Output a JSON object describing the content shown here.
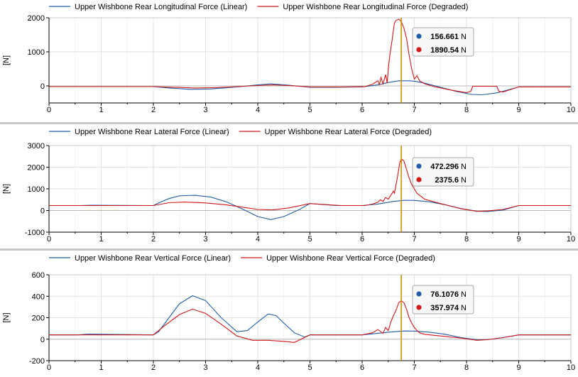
{
  "colors": {
    "linear": "#1f5fa8",
    "degraded": "#d01818",
    "cursor": "#c98a00",
    "grid": "#e2e2e2",
    "axis": "#000000"
  },
  "cursor_x": 6.75,
  "chart_data": [
    {
      "type": "line",
      "xlim": [
        0,
        10
      ],
      "ylim": [
        -500,
        2000
      ],
      "yticks": [
        2000,
        1000,
        0
      ],
      "xticks": [
        0,
        1,
        2,
        3,
        4,
        5,
        6,
        7,
        8,
        9,
        10
      ],
      "ylabel": "[N]",
      "grid": true,
      "legend_position": "top",
      "series": [
        {
          "name": "Upper Wishbone Rear Longitudinal Force (Linear)",
          "color": "#1f5fa8",
          "x": [
            0,
            2,
            2.3,
            2.7,
            3.1,
            3.6,
            4.0,
            4.25,
            4.6,
            5.0,
            5.5,
            6.0,
            6.3,
            6.5,
            6.7,
            6.9,
            7.0,
            7.2,
            7.5,
            7.8,
            8.1,
            8.3,
            8.6,
            9.0,
            10.0
          ],
          "y": [
            -20,
            -20,
            -60,
            -100,
            -90,
            -30,
            30,
            60,
            20,
            -40,
            -40,
            -30,
            30,
            100,
            150,
            150,
            140,
            80,
            -40,
            -160,
            -250,
            -260,
            -200,
            -30,
            -30
          ],
          "cursor_value": 156.661
        },
        {
          "name": "Upper Wishbone Rear Longitudinal Force (Degraded)",
          "color": "#d01818",
          "x": [
            0,
            2,
            2.4,
            2.8,
            3.2,
            3.6,
            4.0,
            4.3,
            4.7,
            5.0,
            5.6,
            6.05,
            6.2,
            6.3,
            6.33,
            6.36,
            6.4,
            6.45,
            6.48,
            6.5,
            6.53,
            6.57,
            6.6,
            6.62,
            6.65,
            6.7,
            6.75,
            6.8,
            6.85,
            6.9,
            6.95,
            7.0,
            7.05,
            7.1,
            7.2,
            7.4,
            7.7,
            8.0,
            8.08,
            8.12,
            8.58,
            8.62,
            8.7,
            9.0,
            10.0
          ],
          "y": [
            -20,
            -20,
            -40,
            -60,
            -50,
            -20,
            10,
            30,
            0,
            -30,
            -30,
            -20,
            50,
            150,
            40,
            250,
            60,
            330,
            80,
            500,
            900,
            1300,
            1650,
            1850,
            1920,
            1960,
            1890.54,
            1700,
            1400,
            900,
            500,
            200,
            300,
            150,
            60,
            -30,
            -120,
            -200,
            -160,
            -10,
            -10,
            -160,
            -180,
            -30,
            -30
          ],
          "cursor_value": 1890.54
        }
      ]
    },
    {
      "type": "line",
      "xlim": [
        0,
        10
      ],
      "ylim": [
        -1000,
        3000
      ],
      "yticks": [
        3000,
        2000,
        1000,
        0,
        -1000
      ],
      "xticks": [
        0,
        1,
        2,
        3,
        4,
        5,
        6,
        7,
        8,
        9,
        10
      ],
      "ylabel": "[N]",
      "grid": true,
      "legend_position": "top",
      "series": [
        {
          "name": "Upper Wishbone Rear Lateral Force (Linear)",
          "color": "#1f5fa8",
          "x": [
            0,
            0.6,
            0.8,
            2.0,
            2.1,
            2.3,
            2.5,
            2.8,
            3.1,
            3.4,
            3.7,
            4.0,
            4.25,
            4.5,
            4.8,
            5.0,
            5.5,
            6.0,
            6.3,
            6.6,
            6.8,
            7.0,
            7.3,
            7.6,
            7.9,
            8.2,
            8.4,
            8.7,
            9.0,
            10.0
          ],
          "y": [
            230,
            230,
            245,
            230,
            350,
            550,
            680,
            700,
            620,
            400,
            80,
            -280,
            -420,
            -280,
            50,
            320,
            230,
            230,
            300,
            420,
            470,
            470,
            400,
            260,
            90,
            -30,
            -50,
            20,
            230,
            230
          ],
          "cursor_value": 472.296
        },
        {
          "name": "Upper Wishbone Rear Lateral Force (Degraded)",
          "color": "#d01818",
          "x": [
            0,
            2.0,
            2.3,
            2.6,
            3.0,
            3.4,
            3.8,
            4.0,
            4.3,
            4.6,
            5.0,
            5.6,
            6.05,
            6.2,
            6.3,
            6.35,
            6.4,
            6.45,
            6.5,
            6.55,
            6.6,
            6.62,
            6.65,
            6.68,
            6.72,
            6.75,
            6.8,
            6.85,
            6.9,
            6.95,
            7.0,
            7.05,
            7.1,
            7.2,
            7.5,
            7.9,
            8.2,
            8.4,
            8.7,
            9.0,
            10.0
          ],
          "y": [
            230,
            230,
            360,
            390,
            350,
            260,
            120,
            50,
            30,
            120,
            320,
            230,
            230,
            300,
            380,
            500,
            420,
            600,
            520,
            700,
            900,
            800,
            1200,
            1600,
            2200,
            2375.6,
            2300,
            1900,
            1500,
            1200,
            1000,
            800,
            700,
            520,
            320,
            80,
            -40,
            -20,
            50,
            230,
            230
          ],
          "cursor_value": 2375.6
        }
      ]
    },
    {
      "type": "line",
      "xlim": [
        0,
        10
      ],
      "ylim": [
        -200,
        600
      ],
      "yticks": [
        600,
        400,
        200,
        0,
        -200
      ],
      "xticks": [
        0,
        1,
        2,
        3,
        4,
        5,
        6,
        7,
        8,
        9,
        10
      ],
      "ylabel": "[N]",
      "grid": true,
      "legend_position": "top",
      "series": [
        {
          "name": "Upper Wishbone Rear Vertical Force (Linear)",
          "color": "#1f5fa8",
          "x": [
            0,
            0.55,
            0.75,
            2.0,
            2.1,
            2.3,
            2.5,
            2.75,
            3.0,
            3.3,
            3.6,
            3.8,
            4.0,
            4.2,
            4.35,
            4.5,
            4.7,
            4.9,
            5.0,
            6.0,
            6.2,
            6.5,
            6.8,
            7.0,
            7.3,
            7.6,
            7.9,
            8.2,
            8.4,
            8.7,
            9.0,
            10.0
          ],
          "y": [
            40,
            40,
            48,
            40,
            70,
            200,
            330,
            405,
            360,
            200,
            70,
            80,
            160,
            235,
            220,
            150,
            60,
            20,
            40,
            40,
            50,
            65,
            76.1076,
            76,
            65,
            45,
            15,
            -5,
            -5,
            15,
            40,
            40
          ],
          "cursor_value": 76.1076
        },
        {
          "name": "Upper Wishbone Rear Vertical Force (Degraded)",
          "color": "#d01818",
          "x": [
            0,
            2.0,
            2.2,
            2.5,
            2.75,
            3.0,
            3.3,
            3.6,
            3.9,
            4.2,
            4.5,
            4.7,
            5.0,
            6.0,
            6.2,
            6.3,
            6.4,
            6.45,
            6.5,
            6.55,
            6.6,
            6.65,
            6.7,
            6.75,
            6.8,
            6.85,
            6.9,
            6.95,
            7.0,
            7.05,
            7.1,
            7.2,
            7.5,
            7.9,
            8.2,
            8.4,
            8.7,
            9.0,
            10.0
          ],
          "y": [
            40,
            40,
            120,
            230,
            280,
            240,
            140,
            30,
            -10,
            -10,
            -20,
            -30,
            40,
            40,
            60,
            90,
            55,
            110,
            80,
            160,
            220,
            270,
            340,
            357.974,
            340,
            280,
            200,
            150,
            110,
            80,
            60,
            45,
            30,
            10,
            -10,
            -5,
            15,
            40,
            40
          ],
          "cursor_value": 357.974
        }
      ]
    }
  ],
  "tooltips": [
    {
      "rows": [
        {
          "value": "156.661",
          "unit": "N",
          "color": "#1f5fa8"
        },
        {
          "value": "1890.54",
          "unit": "N",
          "color": "#d01818"
        }
      ]
    },
    {
      "rows": [
        {
          "value": "472.296",
          "unit": "N",
          "color": "#1f5fa8"
        },
        {
          "value": "2375.6",
          "unit": "N",
          "color": "#d01818"
        }
      ]
    },
    {
      "rows": [
        {
          "value": "76.1076",
          "unit": "N",
          "color": "#1f5fa8"
        },
        {
          "value": "357.974",
          "unit": "N",
          "color": "#d01818"
        }
      ]
    }
  ]
}
